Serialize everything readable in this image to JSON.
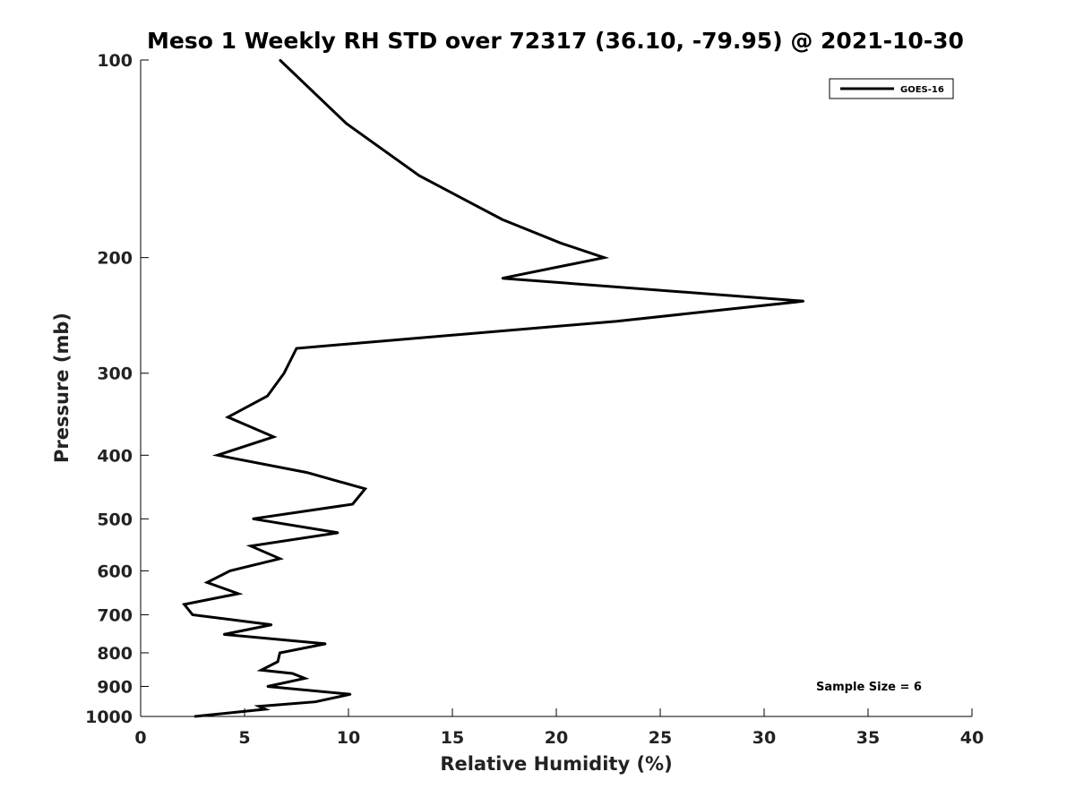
{
  "chart_data": {
    "type": "line",
    "title": "Meso 1 Weekly RH STD over 72317 (36.10, -79.95) @ 2021-10-30",
    "xlabel": "Relative Humidity (%)",
    "ylabel": "Pressure (mb)",
    "xlim": [
      0,
      40
    ],
    "ylim": [
      1000,
      100
    ],
    "y_scale": "log",
    "x_ticks": [
      0,
      5,
      10,
      15,
      20,
      25,
      30,
      35,
      40
    ],
    "y_ticks": [
      100,
      200,
      300,
      400,
      500,
      600,
      700,
      800,
      900,
      1000
    ],
    "legend_position": "top-right",
    "grid": false,
    "series": [
      {
        "name": "GOES-16",
        "color": "#000000",
        "points": [
          [
            6.7,
            100
          ],
          [
            9.9,
            125
          ],
          [
            13.4,
            150
          ],
          [
            17.4,
            175
          ],
          [
            20.2,
            190
          ],
          [
            22.3,
            200
          ],
          [
            17.4,
            215
          ],
          [
            31.9,
            233
          ],
          [
            22.9,
            250
          ],
          [
            7.5,
            275
          ],
          [
            6.9,
            300
          ],
          [
            6.1,
            325
          ],
          [
            4.2,
            350
          ],
          [
            6.4,
            375
          ],
          [
            3.7,
            400
          ],
          [
            8.0,
            425
          ],
          [
            10.8,
            450
          ],
          [
            10.2,
            475
          ],
          [
            5.4,
            500
          ],
          [
            9.5,
            525
          ],
          [
            5.3,
            550
          ],
          [
            6.7,
            575
          ],
          [
            4.3,
            600
          ],
          [
            3.2,
            625
          ],
          [
            4.7,
            650
          ],
          [
            2.1,
            675
          ],
          [
            2.5,
            700
          ],
          [
            6.3,
            725
          ],
          [
            4.0,
            750
          ],
          [
            8.9,
            775
          ],
          [
            6.7,
            800
          ],
          [
            6.6,
            825
          ],
          [
            5.8,
            850
          ],
          [
            7.3,
            860
          ],
          [
            7.9,
            875
          ],
          [
            6.1,
            900
          ],
          [
            10.1,
            925
          ],
          [
            8.4,
            950
          ],
          [
            5.7,
            965
          ],
          [
            6.0,
            975
          ],
          [
            4.6,
            985
          ],
          [
            2.6,
            1000
          ]
        ]
      }
    ],
    "annotations": [
      "Sample Size = 6"
    ]
  }
}
